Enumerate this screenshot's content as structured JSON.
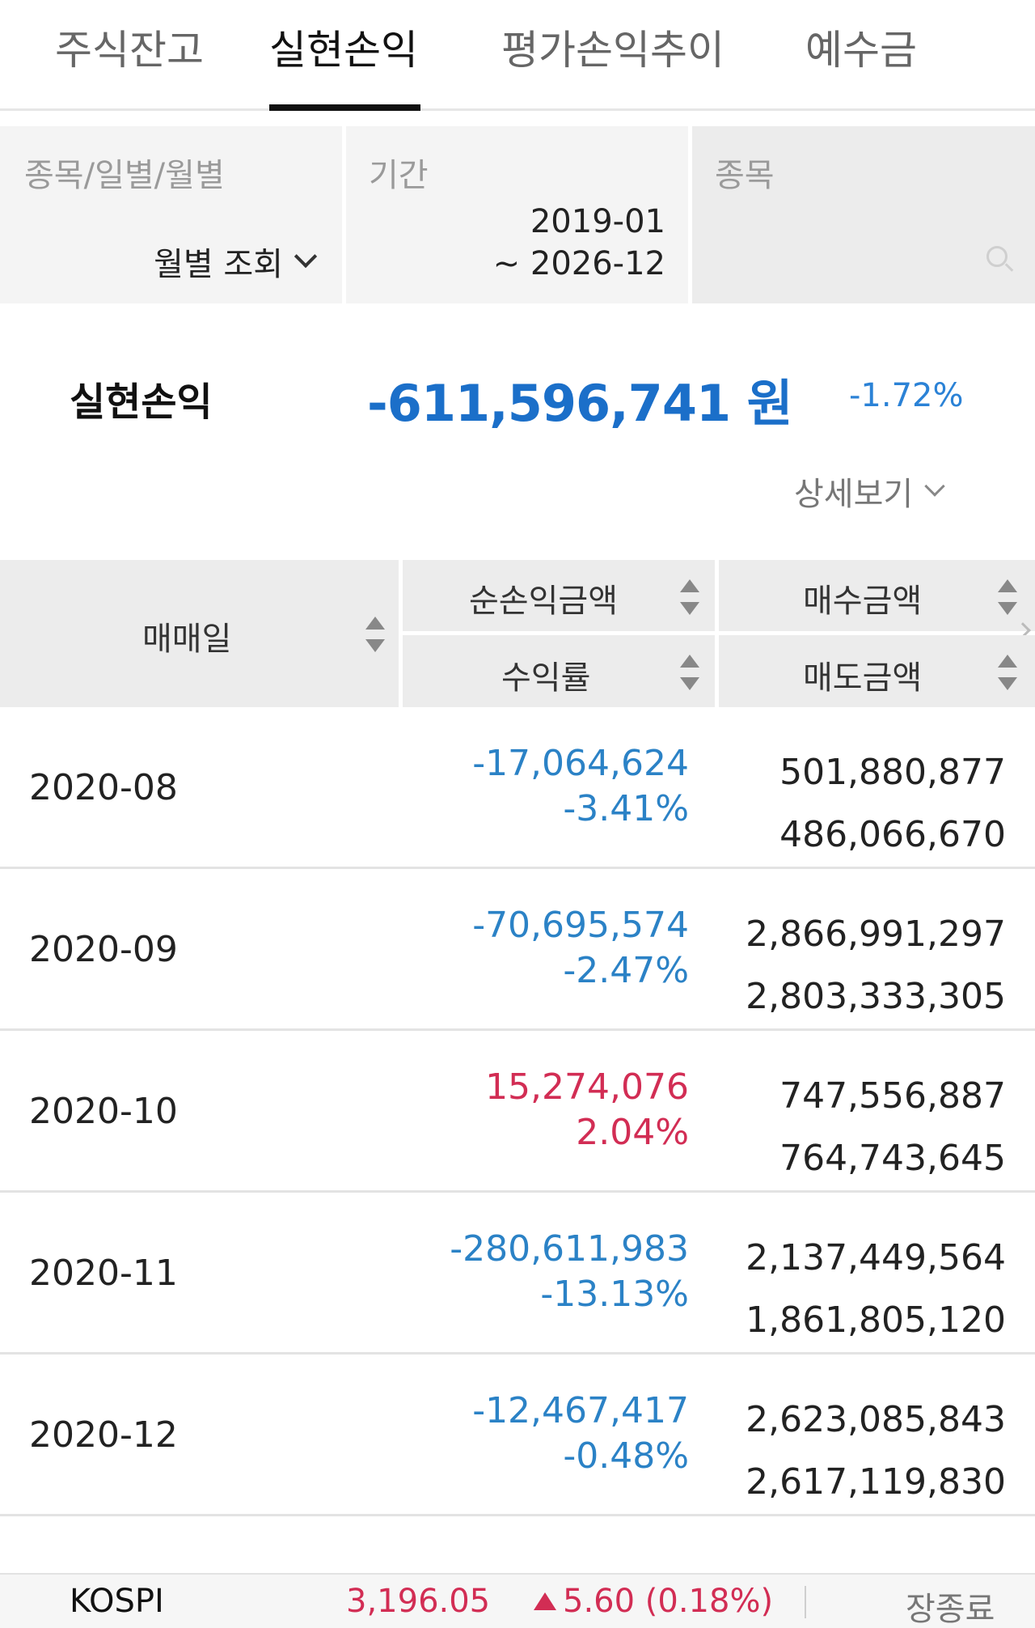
{
  "tabs": [
    {
      "label": "주식잔고"
    },
    {
      "label": "실현손익"
    },
    {
      "label": "평가손익추이"
    },
    {
      "label": "예수금"
    }
  ],
  "filter": {
    "type_label": "종목/일별/월별",
    "type_value": "월별 조회",
    "period_label": "기간",
    "period_start": "2019-01",
    "period_end": "~ 2026-12",
    "stock_label": "종목"
  },
  "summary": {
    "label": "실현손익",
    "amount": "-611,596,741 원",
    "rate": "-1.72%",
    "detail_label": "상세보기"
  },
  "table": {
    "headers": {
      "date": "매매일",
      "net_pl": "순손익금액",
      "rate": "수익률",
      "buy": "매수금액",
      "sell": "매도금액"
    },
    "rows": [
      {
        "date": "2020-08",
        "net_pl": "-17,064,624",
        "rate": "-3.41%",
        "buy": "501,880,877",
        "sell": "486,066,670",
        "sign": "neg"
      },
      {
        "date": "2020-09",
        "net_pl": "-70,695,574",
        "rate": "-2.47%",
        "buy": "2,866,991,297",
        "sell": "2,803,333,305",
        "sign": "neg"
      },
      {
        "date": "2020-10",
        "net_pl": "15,274,076",
        "rate": "2.04%",
        "buy": "747,556,887",
        "sell": "764,743,645",
        "sign": "pos"
      },
      {
        "date": "2020-11",
        "net_pl": "-280,611,983",
        "rate": "-13.13%",
        "buy": "2,137,449,564",
        "sell": "1,861,805,120",
        "sign": "neg"
      },
      {
        "date": "2020-12",
        "net_pl": "-12,467,417",
        "rate": "-0.48%",
        "buy": "2,623,085,843",
        "sell": "2,617,119,830",
        "sign": "neg"
      }
    ]
  },
  "ticker": {
    "name": "KOSPI",
    "value": "3,196.05",
    "change": "5.60 (0.18%)",
    "status": "장종료"
  },
  "colors": {
    "negative": "#2b82c6",
    "positive": "#d22d54",
    "summary_amount": "#1b6fc9"
  }
}
